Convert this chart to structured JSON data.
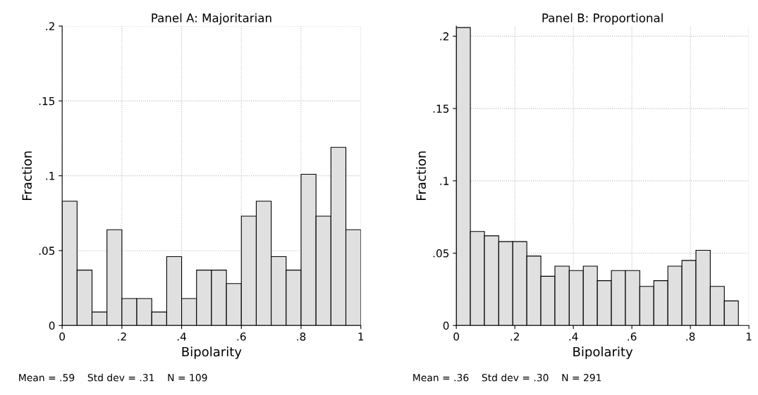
{
  "chart_data": [
    {
      "type": "histogram",
      "title": "Panel A: Majoritarian",
      "xlabel": "Bipolarity",
      "ylabel": "Fraction",
      "color": "#e0e0e0",
      "grid": true,
      "bins": [
        0,
        0.05,
        0.1,
        0.15,
        0.2,
        0.25,
        0.3,
        0.35,
        0.4,
        0.45,
        0.5,
        0.55,
        0.6,
        0.65,
        0.7,
        0.75,
        0.8,
        0.85,
        0.9,
        0.95,
        1
      ],
      "values": [
        0.083,
        0.037,
        0.009,
        0.064,
        0.018,
        0.018,
        0.009,
        0.046,
        0.018,
        0.037,
        0.037,
        0.028,
        0.073,
        0.083,
        0.046,
        0.037,
        0.101,
        0.073,
        0.119,
        0.064
      ],
      "xlim": [
        0,
        1
      ],
      "ylim": [
        0,
        0.2
      ],
      "xticks": [
        0,
        {
          "value": 0.2,
          "label": ".2"
        },
        {
          "value": 0.4,
          "label": ".4"
        },
        {
          "value": 0.6,
          "label": ".6"
        },
        {
          "value": 0.8,
          "label": ".8"
        },
        1
      ],
      "yticks": [
        0,
        {
          "value": 0.05,
          "label": ".05"
        },
        {
          "value": 0.1,
          "label": ".1"
        },
        {
          "value": 0.15,
          "label": ".15"
        },
        {
          "value": 0.2,
          "label": ".2"
        }
      ],
      "annotations": [
        "Mean = .59    Std dev = .31    N = 109"
      ]
    },
    {
      "type": "histogram",
      "title": "Panel B: Proportional",
      "xlabel": "Bipolarity",
      "ylabel": "Fraction",
      "color": "#e0e0e0",
      "grid": true,
      "bins": [
        0,
        0.048,
        0.096,
        0.145,
        0.193,
        0.241,
        0.289,
        0.337,
        0.386,
        0.434,
        0.482,
        0.53,
        0.578,
        0.627,
        0.675,
        0.723,
        0.771,
        0.819,
        0.868,
        0.916,
        0.964
      ],
      "values": [
        0.206,
        0.065,
        0.062,
        0.058,
        0.058,
        0.048,
        0.034,
        0.041,
        0.038,
        0.041,
        0.031,
        0.038,
        0.038,
        0.027,
        0.031,
        0.041,
        0.045,
        0.052,
        0.027,
        0.017
      ],
      "xlim": [
        0,
        1
      ],
      "ylim": [
        0,
        0.207
      ],
      "xticks": [
        0,
        {
          "value": 0.2,
          "label": ".2"
        },
        {
          "value": 0.4,
          "label": ".4"
        },
        {
          "value": 0.6,
          "label": ".6"
        },
        {
          "value": 0.8,
          "label": ".8"
        },
        1
      ],
      "yticks": [
        0,
        {
          "value": 0.05,
          "label": ".05"
        },
        {
          "value": 0.1,
          "label": ".1"
        },
        {
          "value": 0.15,
          "label": ".15"
        },
        {
          "value": 0.2,
          "label": ".2"
        }
      ],
      "annotations": [
        "Mean = .36    Std dev = .30    N = 291"
      ]
    }
  ]
}
